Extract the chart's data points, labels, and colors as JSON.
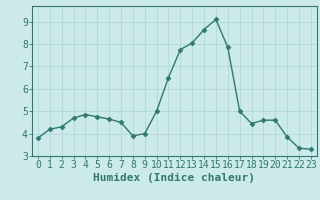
{
  "x": [
    0,
    1,
    2,
    3,
    4,
    5,
    6,
    7,
    8,
    9,
    10,
    11,
    12,
    13,
    14,
    15,
    16,
    17,
    18,
    19,
    20,
    21,
    22,
    23
  ],
  "y": [
    3.8,
    4.2,
    4.3,
    4.7,
    4.85,
    4.75,
    4.65,
    4.5,
    3.9,
    4.0,
    5.0,
    6.5,
    7.75,
    8.05,
    8.65,
    9.1,
    7.85,
    5.0,
    4.45,
    4.6,
    4.6,
    3.85,
    3.35,
    3.3
  ],
  "xlabel": "Humidex (Indice chaleur)",
  "xlim": [
    -0.5,
    23.5
  ],
  "ylim": [
    3.0,
    9.7
  ],
  "yticks": [
    3,
    4,
    5,
    6,
    7,
    8,
    9
  ],
  "xticks": [
    0,
    1,
    2,
    3,
    4,
    5,
    6,
    7,
    8,
    9,
    10,
    11,
    12,
    13,
    14,
    15,
    16,
    17,
    18,
    19,
    20,
    21,
    22,
    23
  ],
  "line_color": "#2d7a6e",
  "marker": "D",
  "marker_size": 2.5,
  "bg_color": "#cceaea",
  "grid_color": "#b0d8d8",
  "axis_color": "#2d7a6e",
  "xlabel_fontsize": 8,
  "tick_fontsize": 7
}
